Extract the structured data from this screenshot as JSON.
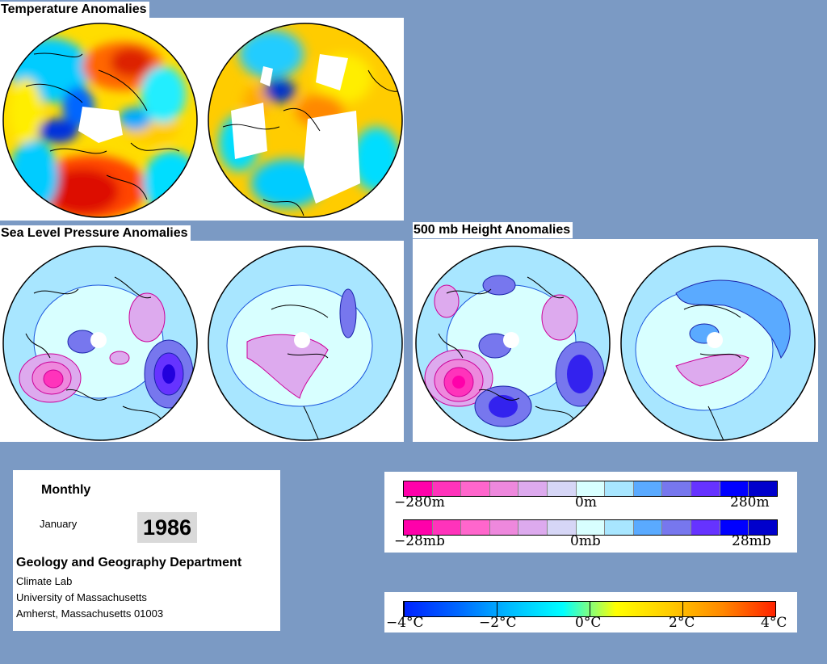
{
  "sections": {
    "temperature": {
      "title": "Temperature Anomalies"
    },
    "slp": {
      "title": "Sea Level Pressure Anomalies"
    },
    "height500": {
      "title": "500 mb Height Anomalies"
    }
  },
  "info": {
    "frequency": "Monthly",
    "month": "January",
    "year": "1986",
    "department": "Geology and Geography Department",
    "lab": "Climate Lab",
    "university": "University of Massachusetts",
    "address": "Amherst, Massachusetts 01003"
  },
  "legends": {
    "height": {
      "min_label": "−280m",
      "mid_label": "0m",
      "max_label": "280m"
    },
    "pressure": {
      "min_label": "−28mb",
      "mid_label": "0mb",
      "max_label": "28mb"
    },
    "temperature": {
      "labels": [
        "−4°C",
        "−2°C",
        "0°C",
        "2°C",
        "4°C"
      ]
    }
  },
  "colors": {
    "background": "#7b9ac4",
    "anomaly_scale": [
      "#ff00aa",
      "#ff33bb",
      "#ff66cc",
      "#ee88dd",
      "#ddaaee",
      "#d6d6f6",
      "#d8ffff",
      "#a8e6ff",
      "#5aaaff",
      "#7777ee",
      "#6633ff",
      "#0000ff",
      "#0000cc"
    ],
    "temperature_scale": [
      "#0022ff",
      "#0066ff",
      "#00bbff",
      "#00ffff",
      "#ffff00",
      "#ffcc00",
      "#ff8800",
      "#ff2200"
    ]
  }
}
